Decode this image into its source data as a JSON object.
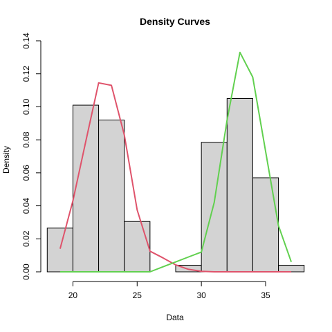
{
  "chart_data": {
    "type": "histogram",
    "title": "Density Curves",
    "xlabel": "Data",
    "ylabel": "Density",
    "xlim": [
      17.5,
      38.5
    ],
    "ylim": [
      0,
      0.14
    ],
    "x_ticks": [
      20,
      25,
      30,
      35
    ],
    "x_tick_labels": [
      "20",
      "25",
      "30",
      "35"
    ],
    "y_ticks": [
      0.0,
      0.02,
      0.04,
      0.06,
      0.08,
      0.1,
      0.12,
      0.14
    ],
    "y_tick_labels": [
      "0.00",
      "0.02",
      "0.04",
      "0.06",
      "0.08",
      "0.10",
      "0.12",
      "0.14"
    ],
    "grid": false,
    "histogram": {
      "fill": "#d3d3d3",
      "stroke": "#000000",
      "bins": [
        {
          "x0": 18,
          "x1": 20,
          "density": 0.0265
        },
        {
          "x0": 20,
          "x1": 22,
          "density": 0.101
        },
        {
          "x0": 22,
          "x1": 24,
          "density": 0.092
        },
        {
          "x0": 24,
          "x1": 26,
          "density": 0.0305
        },
        {
          "x0": 26,
          "x1": 28,
          "density": 0.0
        },
        {
          "x0": 28,
          "x1": 30,
          "density": 0.004
        },
        {
          "x0": 30,
          "x1": 32,
          "density": 0.0785
        },
        {
          "x0": 32,
          "x1": 34,
          "density": 0.105
        },
        {
          "x0": 34,
          "x1": 36,
          "density": 0.057
        },
        {
          "x0": 36,
          "x1": 38,
          "density": 0.004
        }
      ]
    },
    "series": [
      {
        "color": "#df536b",
        "x": [
          19,
          20,
          21,
          22,
          23,
          24,
          25,
          26,
          27,
          28,
          29,
          30,
          31,
          32,
          33,
          34,
          35,
          36,
          37
        ],
        "y": [
          0.014,
          0.043,
          0.079,
          0.1145,
          0.113,
          0.083,
          0.0375,
          0.0125,
          0.0085,
          0.0042,
          0.0015,
          0.0003,
          0.0,
          0.0,
          0.0,
          0.0,
          0.0,
          0.0,
          0.0
        ]
      },
      {
        "color": "#61d04f",
        "x": [
          19,
          20,
          21,
          22,
          23,
          24,
          25,
          26,
          27,
          28,
          29,
          30,
          31,
          32,
          33,
          34,
          35,
          36,
          37
        ],
        "y": [
          0.0,
          0.0,
          0.0,
          0.0,
          0.0,
          0.0,
          0.0,
          0.0,
          0.003,
          0.006,
          0.009,
          0.012,
          0.042,
          0.092,
          0.133,
          0.118,
          0.073,
          0.028,
          0.006
        ]
      }
    ]
  }
}
